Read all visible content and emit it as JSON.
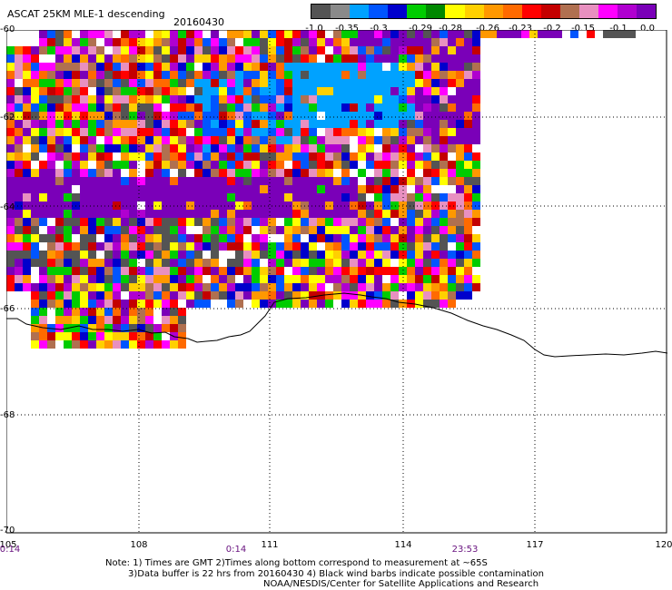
{
  "header": {
    "title": "ASCAT 25KM MLE-1 descending",
    "date": "20160430"
  },
  "colorbar": {
    "colors": [
      "#545454",
      "#8a8a8a",
      "#00a2ff",
      "#0055ff",
      "#0000cc",
      "#00cc00",
      "#008800",
      "#ffff00",
      "#ffd000",
      "#ff9800",
      "#ff6a00",
      "#ff0000",
      "#c40000",
      "#b07050",
      "#e890c0",
      "#ff00ff",
      "#b000d0",
      "#7a00b8"
    ],
    "labels": [
      "-1.0",
      "-0.35",
      "-0.3",
      "-0.29",
      "-0.28",
      "-0.26",
      "-0.23",
      "-0.2",
      "-0.15",
      "-0.1",
      "0.0"
    ]
  },
  "map": {
    "lat_labels": [
      "-60",
      "-62",
      "-64",
      "-66",
      "-68",
      "-70"
    ],
    "lon_labels": [
      "105",
      "108",
      "111",
      "114",
      "117",
      "120"
    ],
    "time_labels": [
      "0:14",
      "0:14",
      "23:53"
    ],
    "lon_range": [
      105,
      120
    ],
    "lat_range": [
      -70,
      -60
    ]
  },
  "notes": {
    "line1": "Note: 1) Times are GMT 2)Times along bottom correspond to measurement at ~65S",
    "line2": "3)Data buffer is 22 hrs from 20160430 4) Black wind barbs indicate possible contamination",
    "line3": "NOAA/NESDIS/Center for Satellite Applications and Research"
  }
}
